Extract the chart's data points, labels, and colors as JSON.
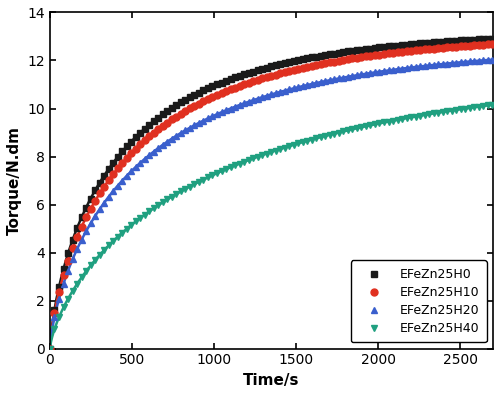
{
  "title": "",
  "xlabel": "Time/s",
  "ylabel": "Torque/N.dm",
  "xlim": [
    0,
    2700
  ],
  "ylim": [
    0,
    14
  ],
  "xticks": [
    0,
    500,
    1000,
    1500,
    2000,
    2500
  ],
  "yticks": [
    0,
    2,
    4,
    6,
    8,
    10,
    12,
    14
  ],
  "series": [
    {
      "label": "EFeZn25H0",
      "color": "#1a1a1a",
      "marker": "s",
      "markersize": 5,
      "plateau": 13.3,
      "k": 0.012,
      "p": 0.72
    },
    {
      "label": "EFeZn25H10",
      "color": "#e03020",
      "marker": "o",
      "markersize": 5,
      "plateau": 13.2,
      "k": 0.011,
      "p": 0.72
    },
    {
      "label": "EFeZn25H20",
      "color": "#3a5fcd",
      "marker": "^",
      "markersize": 5,
      "plateau": 12.7,
      "k": 0.01,
      "p": 0.72
    },
    {
      "label": "EFeZn25H40",
      "color": "#20a080",
      "marker": "v",
      "markersize": 5,
      "plateau": 11.9,
      "k": 0.0065,
      "p": 0.72
    }
  ],
  "figsize": [
    5.0,
    3.95
  ],
  "dpi": 100,
  "legend_loc": "lower right",
  "legend_fontsize": 9,
  "axis_fontsize": 11,
  "tick_fontsize": 10,
  "linewidth": 1.8,
  "markevery": 55
}
